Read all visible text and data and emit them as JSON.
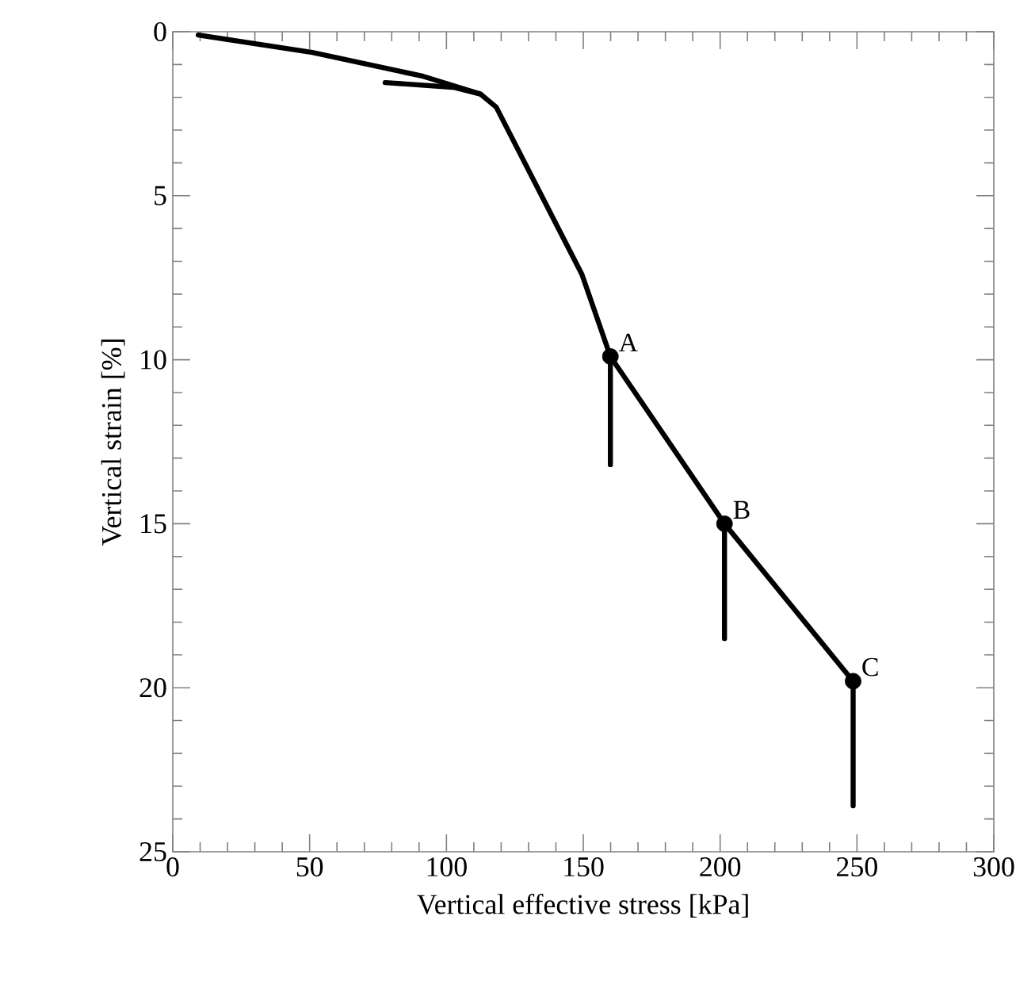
{
  "chart_data": {
    "type": "line",
    "xlabel": "Vertical effective stress [kPa]",
    "ylabel": "Vertical strain [%]",
    "xlim": [
      0,
      300
    ],
    "ylim": [
      25,
      0
    ],
    "xticks": [
      0,
      50,
      100,
      150,
      200,
      250,
      300
    ],
    "yticks": [
      0,
      5,
      10,
      15,
      20,
      25
    ],
    "series": [
      {
        "color": "#000000",
        "x": [
          9.3,
          51,
          91.5,
          112.4,
          118.2,
          149.5,
          159.9,
          201.6,
          248.6
        ],
        "values": [
          0.1,
          0.63,
          1.36,
          1.9,
          2.3,
          7.4,
          9.9,
          15.0,
          19.8
        ]
      },
      {
        "color": "#000000",
        "x": [
          77.6,
          103,
          112.4
        ],
        "values": [
          1.55,
          1.7,
          1.9
        ]
      },
      {
        "color": "#000000",
        "x": [
          159.9,
          159.9
        ],
        "values": [
          9.9,
          13.2
        ]
      },
      {
        "color": "#000000",
        "x": [
          201.6,
          201.6
        ],
        "values": [
          15.0,
          18.5
        ]
      },
      {
        "color": "#000000",
        "x": [
          248.6,
          248.6
        ],
        "values": [
          19.8,
          23.6
        ]
      },
      {
        "type": "scatter",
        "marker": "circle",
        "color": "#000000",
        "x": [
          159.9,
          201.6,
          248.6
        ],
        "values": [
          9.9,
          15.0,
          19.8
        ]
      }
    ],
    "annotations": [
      {
        "text": "A",
        "x": 159.9,
        "y": 9.9
      },
      {
        "text": "B",
        "x": 201.6,
        "y": 15.0
      },
      {
        "text": "C",
        "x": 248.6,
        "y": 19.8
      }
    ]
  }
}
